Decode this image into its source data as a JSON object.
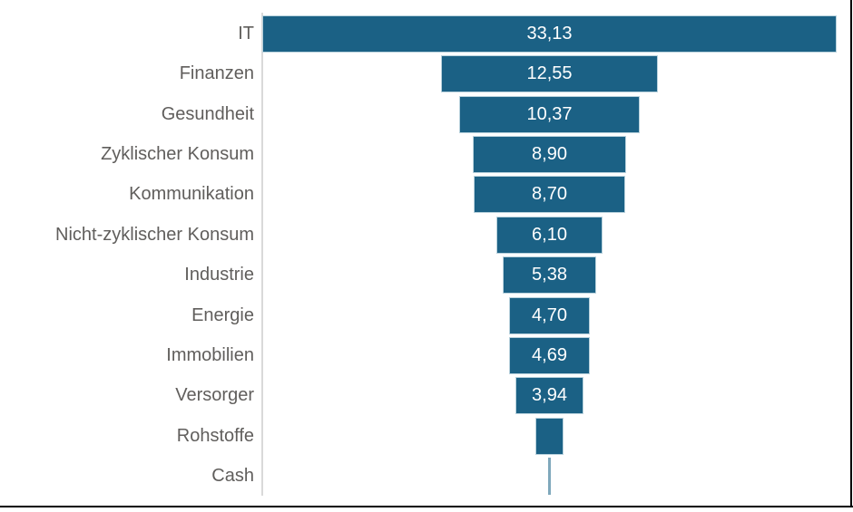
{
  "chart_data": {
    "type": "funnel",
    "orientation": "horizontal-centered-bars",
    "title": "",
    "xlabel": "",
    "ylabel": "",
    "legend": "none",
    "grid": "off",
    "value_axis_max": 33.13,
    "categories": [
      "IT",
      "Finanzen",
      "Gesundheit",
      "Zyklischer Konsum",
      "Kommunikation",
      "Nicht-zyklischer Konsum",
      "Industrie",
      "Energie",
      "Immobilien",
      "Versorger",
      "Rohstoffe",
      "Cash"
    ],
    "values": [
      33.13,
      12.55,
      10.37,
      8.9,
      8.7,
      6.1,
      5.38,
      4.7,
      4.69,
      3.94,
      1.62,
      0.12
    ],
    "value_labels": [
      "33,13",
      "12,55",
      "10,37",
      "8,90",
      "8,70",
      "6,10",
      "5,38",
      "4,70",
      "4,69",
      "3,94",
      "",
      ""
    ],
    "unlabeled_small_bars": [
      "Rohstoffe",
      "Cash"
    ],
    "decimal_separator": ","
  },
  "colors": {
    "bar_fill": "#1b6185",
    "bar_border": "#b9d2dd",
    "cash_sliver": "#7fa8bc",
    "axis_line": "#d9d9d9",
    "category_label_text": "#605e5c",
    "value_label_text": "#ffffff",
    "frame": "#000000",
    "background": "#ffffff"
  }
}
